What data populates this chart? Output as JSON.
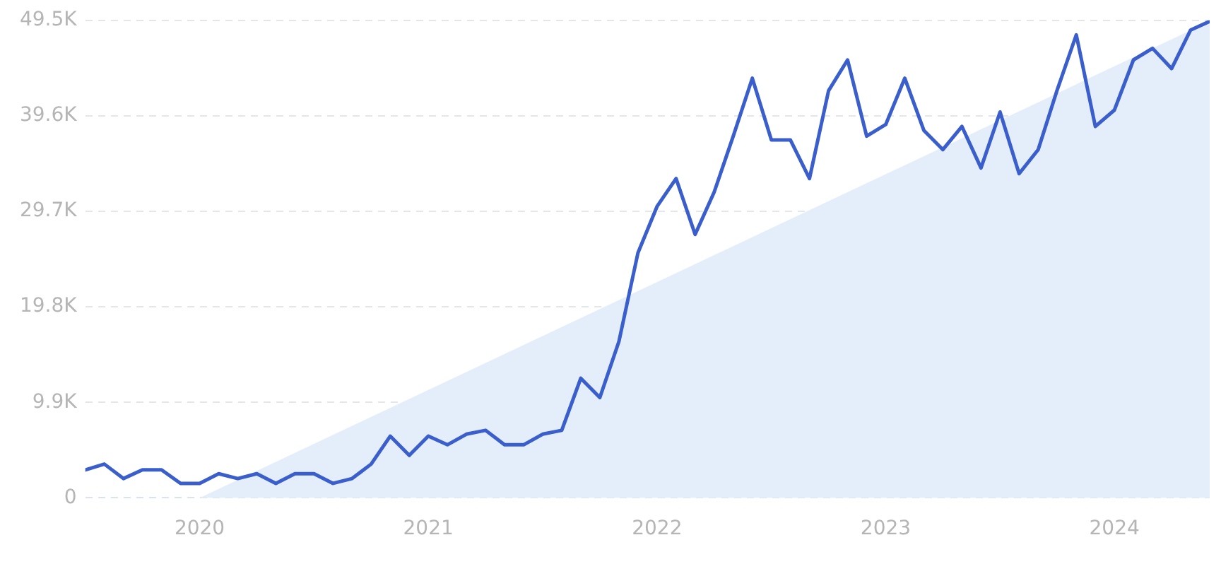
{
  "chart_data": {
    "type": "line",
    "x": [
      "2019-07",
      "2019-08",
      "2019-09",
      "2019-10",
      "2019-11",
      "2019-12",
      "2020-01",
      "2020-02",
      "2020-03",
      "2020-04",
      "2020-05",
      "2020-06",
      "2020-07",
      "2020-08",
      "2020-09",
      "2020-10",
      "2020-11",
      "2020-12",
      "2021-01",
      "2021-02",
      "2021-03",
      "2021-04",
      "2021-05",
      "2021-06",
      "2021-07",
      "2021-08",
      "2021-09",
      "2021-10",
      "2021-11",
      "2021-12",
      "2022-01",
      "2022-02",
      "2022-03",
      "2022-04",
      "2022-05",
      "2022-06",
      "2022-07",
      "2022-08",
      "2022-09",
      "2022-10",
      "2022-11",
      "2022-12",
      "2023-01",
      "2023-02",
      "2023-03",
      "2023-04",
      "2023-05",
      "2023-06",
      "2023-07",
      "2023-08",
      "2023-09",
      "2023-10",
      "2023-11",
      "2023-12",
      "2024-01",
      "2024-02",
      "2024-03",
      "2024-04",
      "2024-05",
      "2024-06"
    ],
    "series": [
      {
        "type": "area",
        "color": "#e4eefb",
        "x": [
          "2020-01",
          "2024-06"
        ],
        "values": [
          0,
          49400
        ]
      },
      {
        "color": "#3a5fcd",
        "values": [
          2900,
          3500,
          2000,
          2900,
          2900,
          1500,
          1500,
          2500,
          2000,
          2500,
          1500,
          2500,
          2500,
          1500,
          2000,
          3500,
          6400,
          4400,
          6400,
          5500,
          6600,
          7000,
          5500,
          5500,
          6600,
          7000,
          12400,
          10400,
          16200,
          25400,
          30200,
          33100,
          27300,
          31700,
          37500,
          43500,
          37100,
          37100,
          33100,
          42200,
          45400,
          37500,
          38700,
          43500,
          38100,
          36100,
          38500,
          34200,
          40000,
          33600,
          36100,
          42300,
          48000,
          38500,
          40200,
          45400,
          46600,
          44500,
          48500,
          49400
        ]
      }
    ],
    "xlim": [
      "2019-07",
      "2024-06"
    ],
    "xticks": [
      "2020",
      "2021",
      "2022",
      "2023",
      "2024"
    ],
    "ylim": [
      0,
      49500
    ],
    "yticks": [
      0,
      {
        "value": 9900,
        "label": "9.9K"
      },
      {
        "value": 19800,
        "label": "19.8K"
      },
      {
        "value": 29700,
        "label": "29.7K"
      },
      {
        "value": 39600,
        "label": "39.6K"
      },
      {
        "value": 49500,
        "label": "49.5K"
      }
    ],
    "grid": "y",
    "legend": false,
    "marker": "none",
    "line_style": "solid"
  }
}
